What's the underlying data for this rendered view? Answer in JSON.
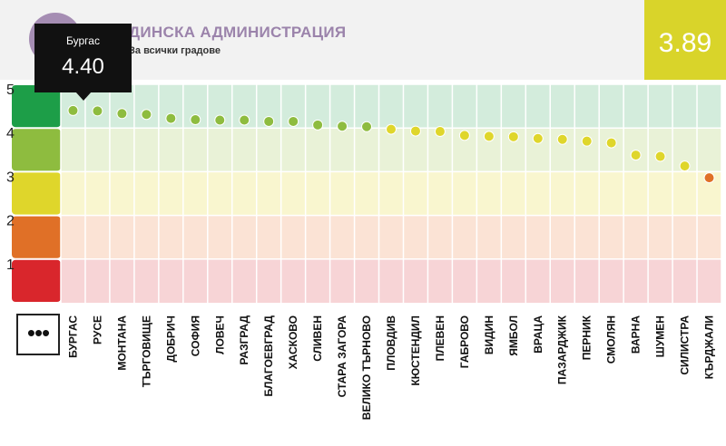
{
  "header": {
    "title": "ДИНСКА АДМИНИСТРАЦИЯ",
    "subtitle": "За всички градове",
    "score": "3.89",
    "score_color": "#d9d42a",
    "logo_color": "#a58db3"
  },
  "tooltip": {
    "city": "Бургас",
    "value": "4.40"
  },
  "more_button": {
    "icon": "more-dots-icon",
    "label": "•••"
  },
  "chart_data": {
    "type": "scatter",
    "ylim": [
      0,
      5
    ],
    "yticks": [
      1,
      2,
      3,
      4,
      5
    ],
    "bands": [
      {
        "from": 4,
        "to": 5,
        "color": "#1d9e48",
        "light": "#d3ecdc"
      },
      {
        "from": 3,
        "to": 4,
        "color": "#8ebc3f",
        "light": "#e9f2d7"
      },
      {
        "from": 2,
        "to": 3,
        "color": "#dfd62b",
        "light": "#f9f6cf"
      },
      {
        "from": 1,
        "to": 2,
        "color": "#e07027",
        "light": "#fbe3d5"
      },
      {
        "from": 0,
        "to": 1,
        "color": "#d9262c",
        "light": "#f7d4d6"
      }
    ],
    "categories": [
      "БУРГАС",
      "РУСЕ",
      "МОНТАНА",
      "ТЪРГОВИЩЕ",
      "ДОБРИЧ",
      "СОФИЯ",
      "ЛОВЕЧ",
      "РАЗГРАД",
      "БЛАГОЕВГРАД",
      "ХАСКОВО",
      "СЛИВЕН",
      "СТАРА ЗАГОРА",
      "ВЕЛИКО ТЪРНОВО",
      "ПЛОВДИВ",
      "КЮСТЕНДИЛ",
      "ПЛЕВЕН",
      "ГАБРОВО",
      "ВИДИН",
      "ЯМБОЛ",
      "ВРАЦА",
      "ПАЗАРДЖИК",
      "ПЕРНИК",
      "СМОЛЯН",
      "ВАРНА",
      "ШУМЕН",
      "СИЛИСТРА",
      "КЪРДЖАЛИ"
    ],
    "values": [
      4.4,
      4.39,
      4.33,
      4.31,
      4.22,
      4.19,
      4.18,
      4.18,
      4.15,
      4.15,
      4.07,
      4.04,
      4.03,
      3.97,
      3.93,
      3.92,
      3.83,
      3.81,
      3.8,
      3.76,
      3.74,
      3.7,
      3.66,
      3.38,
      3.35,
      3.13,
      2.86
    ],
    "point_colors": [
      "#8ebc3f",
      "#8ebc3f",
      "#8ebc3f",
      "#8ebc3f",
      "#8ebc3f",
      "#8ebc3f",
      "#8ebc3f",
      "#8ebc3f",
      "#8ebc3f",
      "#8ebc3f",
      "#8ebc3f",
      "#8ebc3f",
      "#8ebc3f",
      "#dfd62b",
      "#dfd62b",
      "#dfd62b",
      "#dfd62b",
      "#dfd62b",
      "#dfd62b",
      "#dfd62b",
      "#dfd62b",
      "#dfd62b",
      "#dfd62b",
      "#dfd62b",
      "#dfd62b",
      "#dfd62b",
      "#e07027"
    ]
  }
}
